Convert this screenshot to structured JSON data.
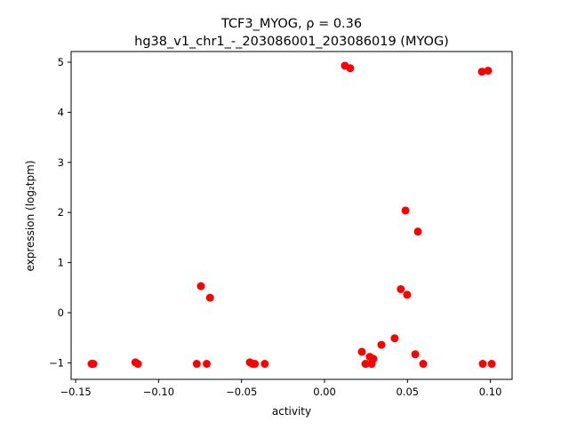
{
  "chart_data": {
    "type": "scatter",
    "title_line1": "TCF3_MYOG, ρ = 0.36",
    "title_line2": "hg38_v1_chr1_-_203086001_203086019 (MYOG)",
    "xlabel": "activity",
    "ylabel": "expression (log₂tpm)",
    "xlim": [
      -0.15,
      0.11
    ],
    "ylim": [
      -1.3,
      5.2
    ],
    "xticks": [
      -0.15,
      -0.1,
      -0.05,
      0.0,
      0.05,
      0.1
    ],
    "xtick_labels": [
      "−0.15",
      "−0.10",
      "−0.05",
      "0.00",
      "0.05",
      "0.10"
    ],
    "yticks": [
      -1,
      0,
      1,
      2,
      3,
      4,
      5
    ],
    "ytick_labels": [
      "−1",
      "0",
      "1",
      "2",
      "3",
      "4",
      "5"
    ],
    "grid": false,
    "marker_color": "#ff0000",
    "points": [
      [
        -0.1404,
        -1.02
      ],
      [
        -0.1393,
        -1.02
      ],
      [
        -0.114,
        -0.99
      ],
      [
        -0.1125,
        -1.02
      ],
      [
        -0.077,
        -1.02
      ],
      [
        -0.071,
        -1.02
      ],
      [
        -0.0745,
        0.53
      ],
      [
        -0.069,
        0.3
      ],
      [
        -0.045,
        -0.99
      ],
      [
        -0.0434,
        -1.02
      ],
      [
        -0.042,
        -1.02
      ],
      [
        -0.036,
        -1.02
      ],
      [
        0.0123,
        4.93
      ],
      [
        0.0155,
        4.88
      ],
      [
        0.0225,
        -0.78
      ],
      [
        0.0247,
        -1.02
      ],
      [
        0.0273,
        -0.88
      ],
      [
        0.0284,
        -1.02
      ],
      [
        0.0295,
        -0.92
      ],
      [
        0.0343,
        -0.64
      ],
      [
        0.0423,
        -0.51
      ],
      [
        0.046,
        0.47
      ],
      [
        0.0488,
        2.04
      ],
      [
        0.0498,
        0.36
      ],
      [
        0.0547,
        -0.83
      ],
      [
        0.0563,
        1.62
      ],
      [
        0.0595,
        -1.02
      ],
      [
        0.0949,
        4.81
      ],
      [
        0.0986,
        4.83
      ],
      [
        0.0954,
        -1.02
      ],
      [
        0.1008,
        -1.02
      ]
    ]
  }
}
